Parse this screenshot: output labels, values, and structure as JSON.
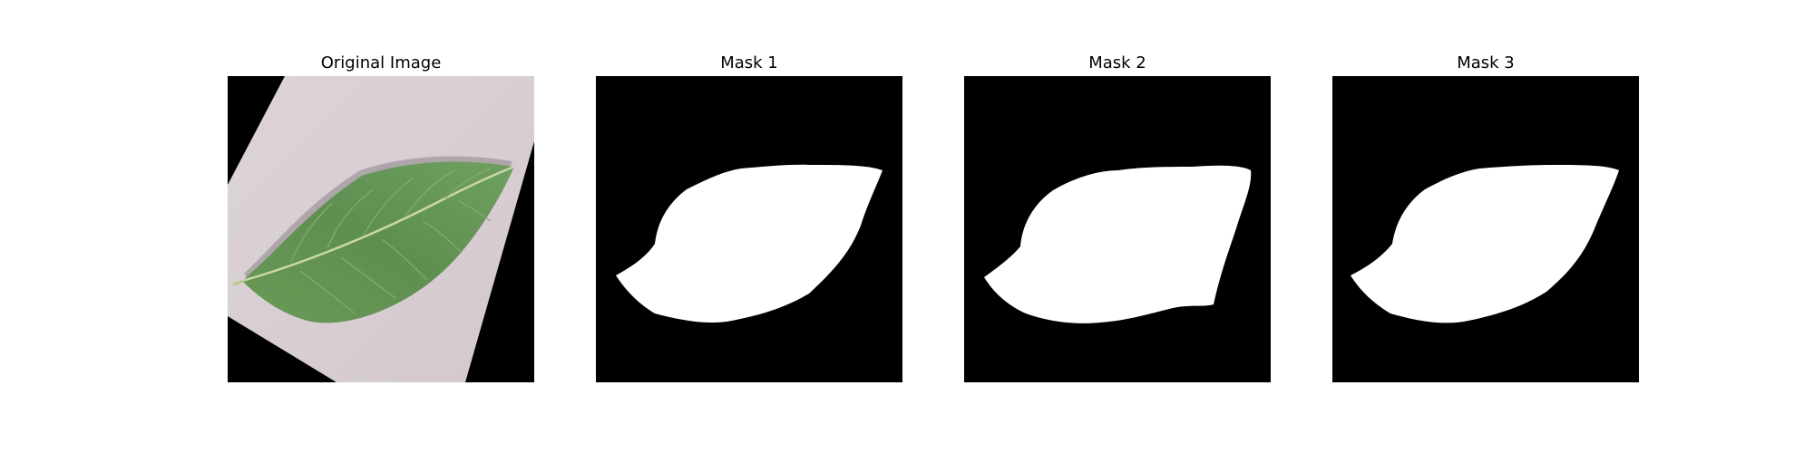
{
  "figure": {
    "panels": [
      {
        "title": "Original Image"
      },
      {
        "title": "Mask 1"
      },
      {
        "title": "Mask 2"
      },
      {
        "title": "Mask 3"
      }
    ]
  }
}
